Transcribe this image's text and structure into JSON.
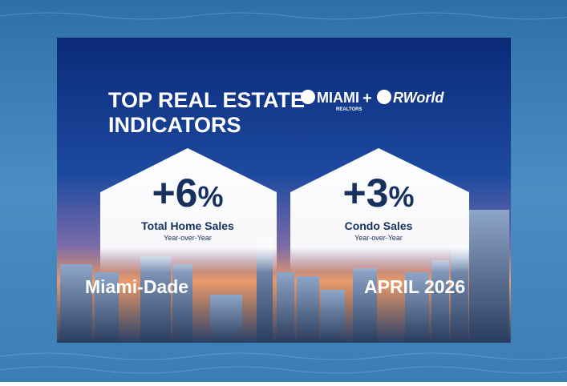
{
  "header": {
    "title_lines": [
      "TOP REAL ESTATE",
      "INDICATORS"
    ]
  },
  "logos": {
    "miami": "MIAMI",
    "miami_sub": "REALTORS",
    "plus": "+",
    "partner": "RWorld"
  },
  "indicators": [
    {
      "number": "+6",
      "unit": "%",
      "label": "Total Home Sales",
      "sublabel": "Year-over-Year"
    },
    {
      "number": "+3",
      "unit": "%",
      "label": "Condo Sales",
      "sublabel": "Year-over-Year"
    }
  ],
  "footer": {
    "region": "Miami-Dade",
    "date": "APRIL 2026"
  }
}
